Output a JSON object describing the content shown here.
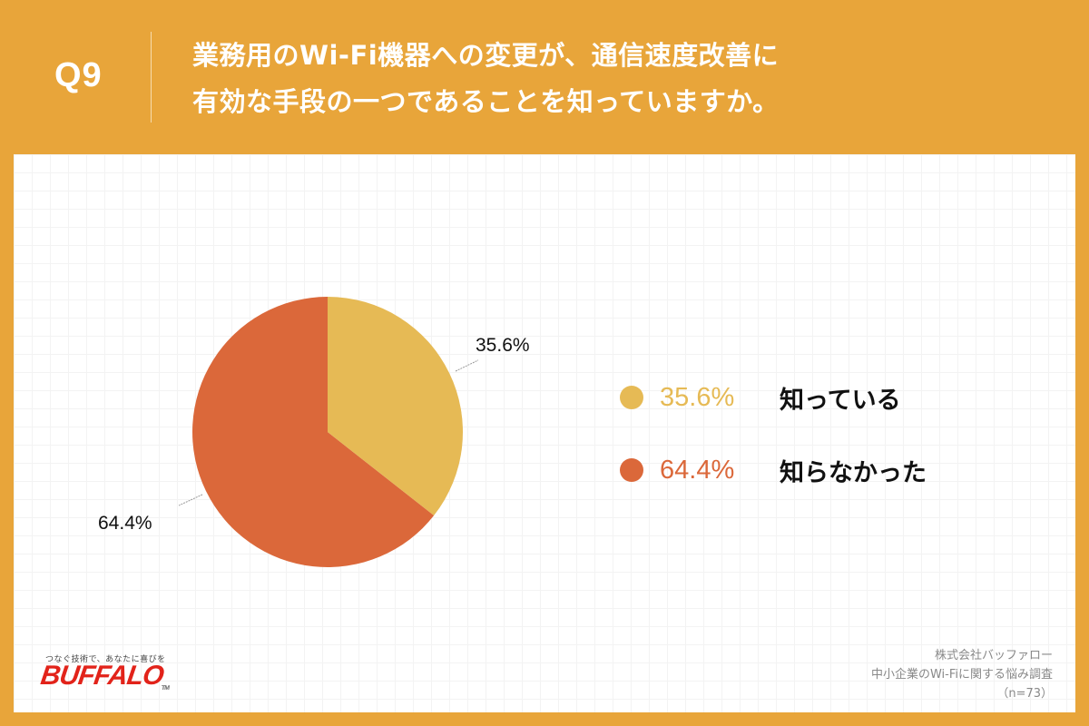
{
  "header": {
    "question_number": "Q9",
    "title_line1": "業務用のWi-Fi機器への変更が、通信速度改善に",
    "title_line2": "有効な手段の一つであることを知っていますか。"
  },
  "chart_data": {
    "type": "pie",
    "title": "業務用のWi-Fi機器への変更が、通信速度改善に有効な手段の一つであることを知っていますか。",
    "categories": [
      "知っている",
      "知らなかった"
    ],
    "values": [
      35.6,
      64.4
    ],
    "colors": [
      "#E6BA55",
      "#DB683A"
    ],
    "start_angle": "12 o'clock, clockwise",
    "slice_labels": [
      "35.6%",
      "64.4%"
    ],
    "legend_position": "right",
    "n": 73
  },
  "legend": [
    {
      "pct": "35.6%",
      "label": "知っている",
      "color": "#E6BA55"
    },
    {
      "pct": "64.4%",
      "label": "知らなかった",
      "color": "#DB683A"
    }
  ],
  "pie_labels": {
    "slice0": "35.6%",
    "slice1": "64.4%"
  },
  "brand": {
    "tagline": "つなぐ技術で、あなたに喜びを",
    "logo": "BUFFALO",
    "tm": "TM"
  },
  "source": {
    "line1": "株式会社バッファロー",
    "line2": "中小企業のWi-Fiに関する悩み調査",
    "line3": "（n=73）"
  }
}
